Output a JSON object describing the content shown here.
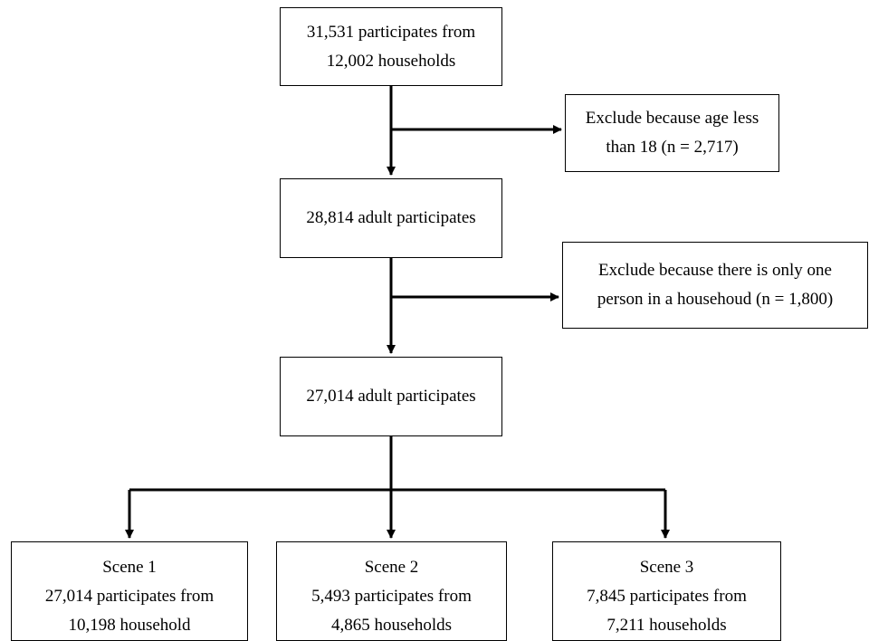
{
  "nodes": {
    "start": {
      "line1": "31,531 participates from",
      "line2": "12,002 households"
    },
    "exclude_age": {
      "line1": "Exclude because age less",
      "line2": "than 18 (n = 2,717)"
    },
    "adults": {
      "line1": "28,814 adult participates"
    },
    "exclude_single": {
      "line1": "Exclude because there is only one",
      "line2": "person in a househoud (n = 1,800)"
    },
    "final": {
      "line1": "27,014 adult participates"
    },
    "scene1": {
      "title": "Scene 1",
      "line1": "27,014 participates from",
      "line2": "10,198 household"
    },
    "scene2": {
      "title": "Scene 2",
      "line1": "5,493 participates from",
      "line2": "4,865 households"
    },
    "scene3": {
      "title": "Scene 3",
      "line1": "7,845 participates from",
      "line2": "7,211 households"
    }
  }
}
